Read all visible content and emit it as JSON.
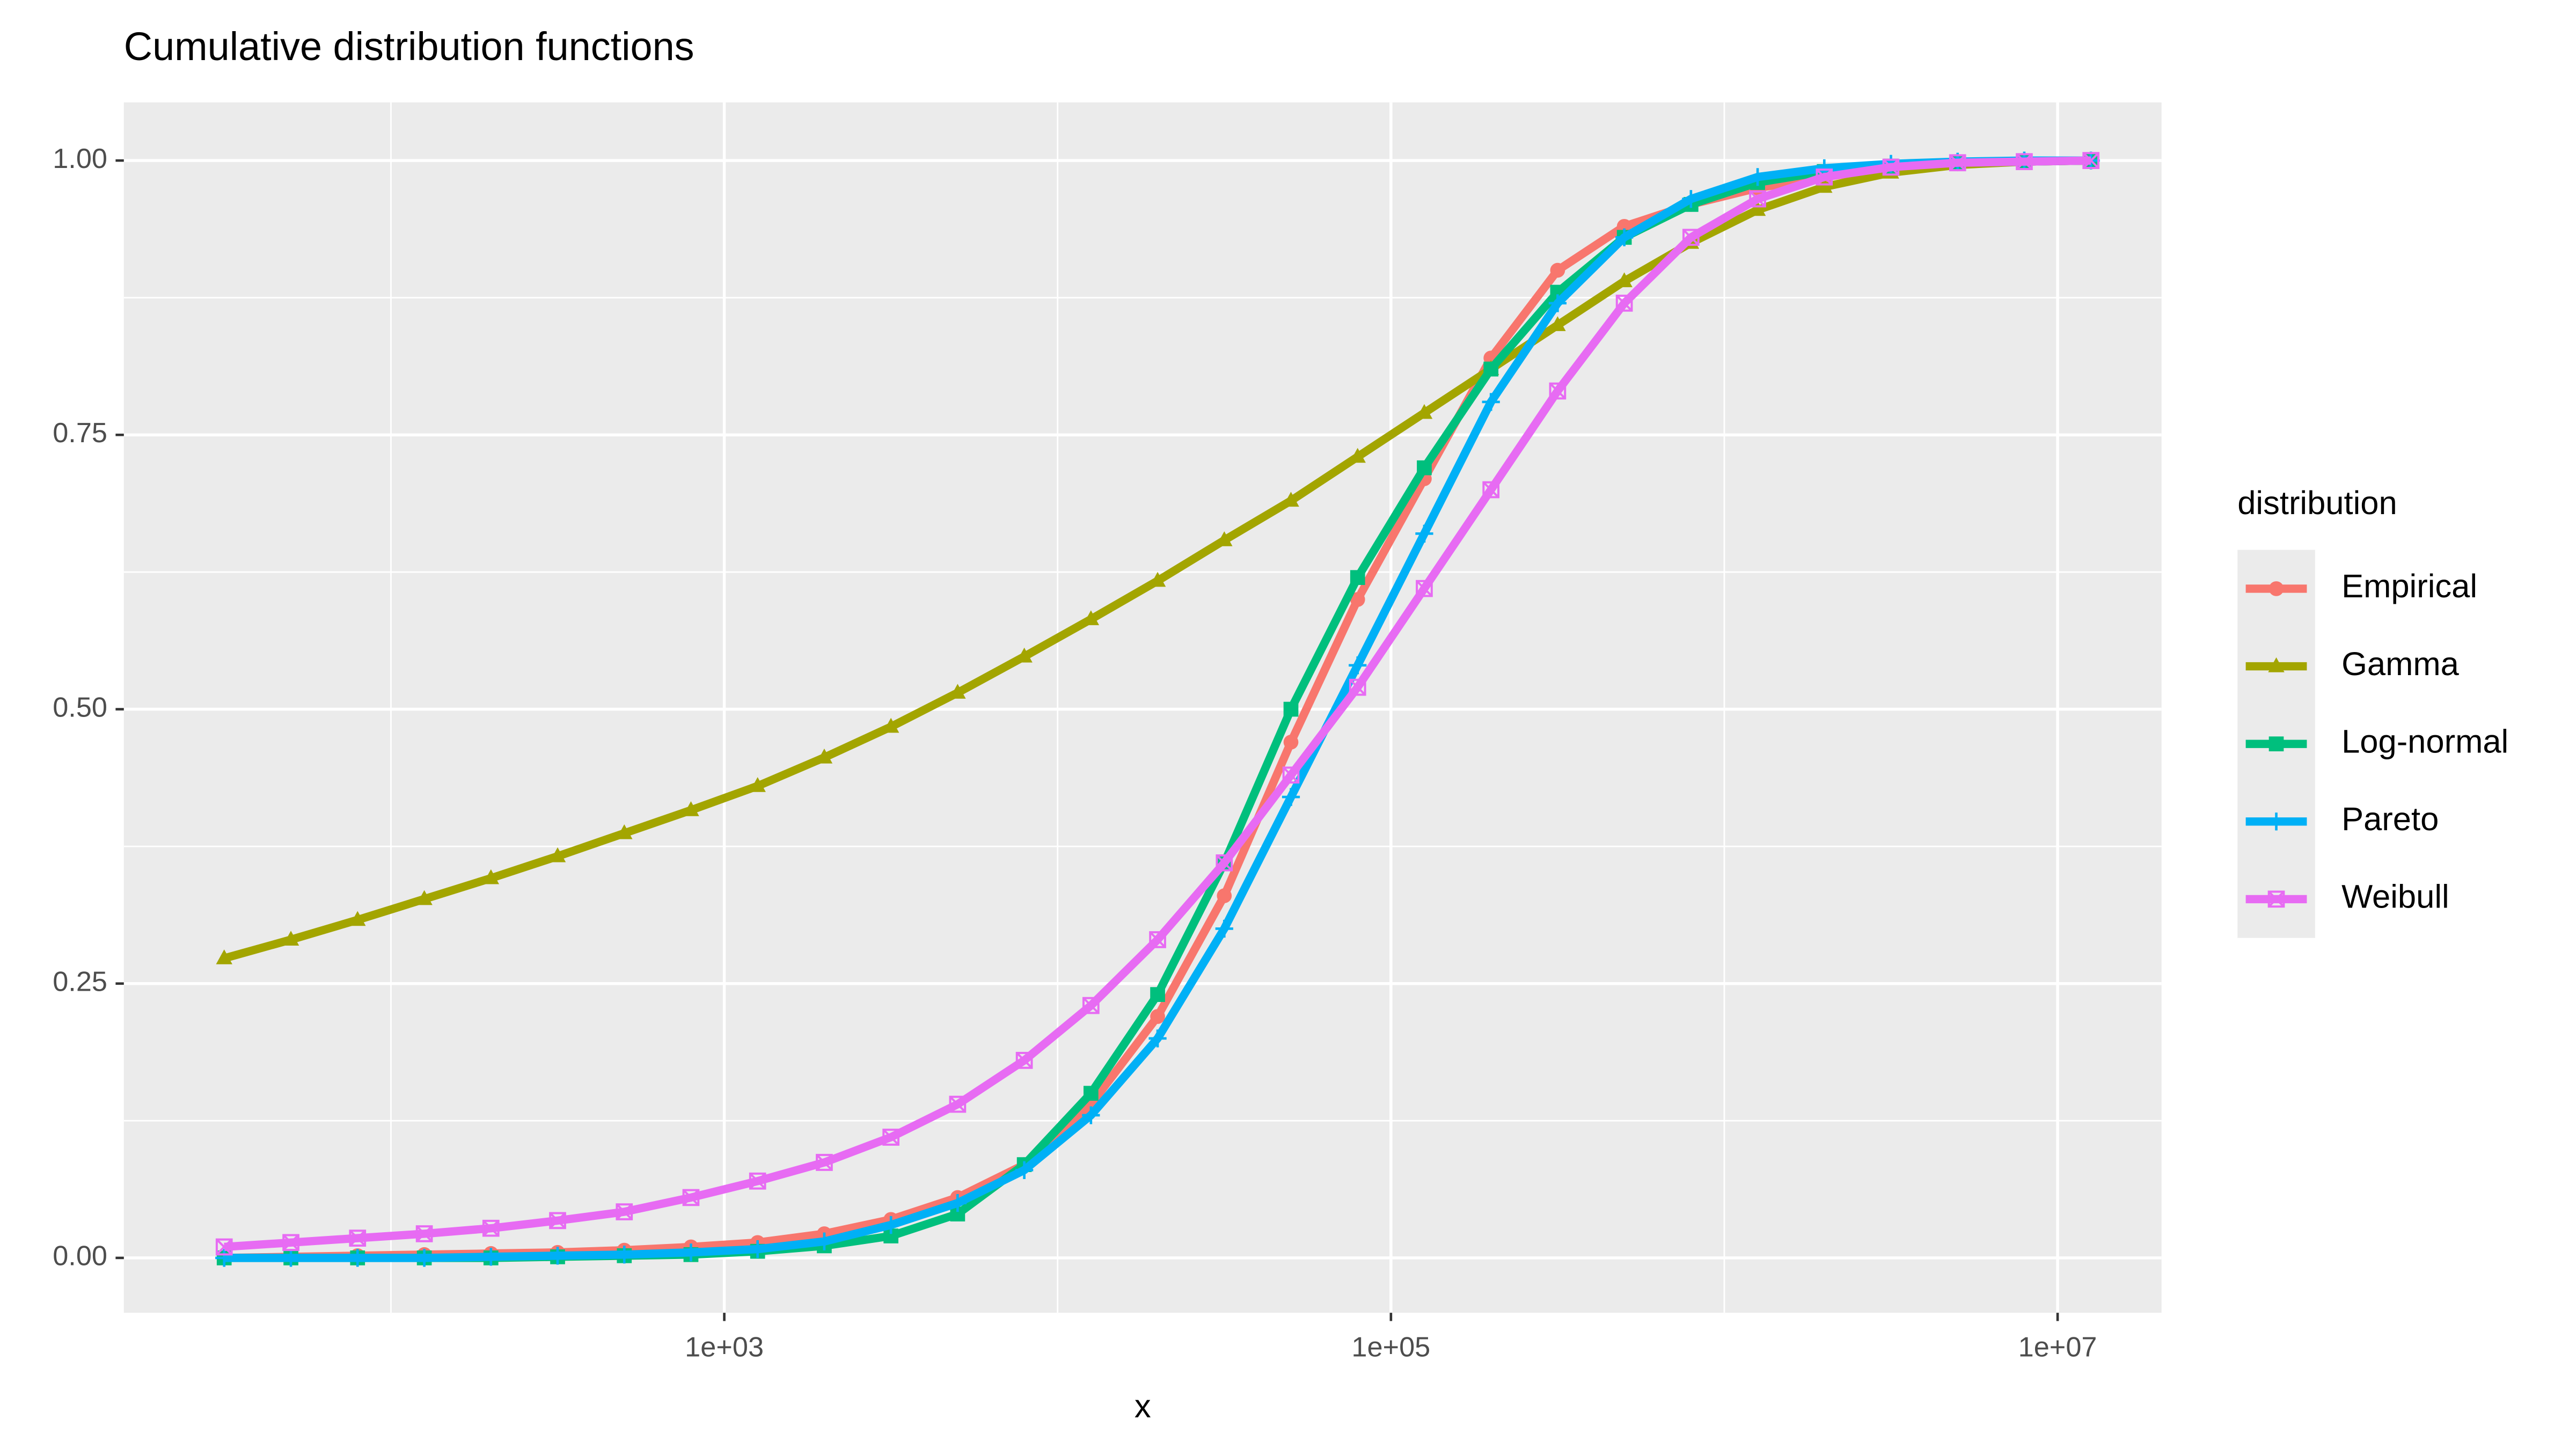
{
  "chart_data": {
    "type": "line",
    "title": "Cumulative distribution functions",
    "xlabel": "x",
    "legend_title": "distribution",
    "legend_position": "right",
    "xlog": true,
    "grid": true,
    "x": [
      31.6,
      50.1,
      79.4,
      125.9,
      199.5,
      316.2,
      501.2,
      794.3,
      1258.9,
      1995.3,
      3162.3,
      5011.9,
      7943.3,
      12589,
      19953,
      31623,
      50119,
      79433,
      125893,
      199526,
      316228,
      501187,
      794328,
      1258925,
      1995262,
      3162278,
      5011872,
      7943282,
      12589254
    ],
    "xlim": [
      15.8,
      20500000
    ],
    "xticks": [
      {
        "value": 1000,
        "label": "1e+03"
      },
      {
        "value": 100000,
        "label": "1e+05"
      },
      {
        "value": 10000000,
        "label": "1e+07"
      }
    ],
    "xminorticks": [
      100,
      10000,
      1000000
    ],
    "ylim": [
      -0.05,
      1.053
    ],
    "yticks": [
      {
        "value": 0,
        "label": "0.00"
      },
      {
        "value": 0.25,
        "label": "0.25"
      },
      {
        "value": 0.5,
        "label": "0.50"
      },
      {
        "value": 0.75,
        "label": "0.75"
      },
      {
        "value": 1,
        "label": "1.00"
      }
    ],
    "yminorticks": [
      0.125,
      0.375,
      0.625,
      0.875
    ],
    "series": [
      {
        "name": "Empirical",
        "color": "#F8766D",
        "marker": "circle",
        "values": [
          0,
          0.001,
          0.002,
          0.003,
          0.004,
          0.005,
          0.007,
          0.01,
          0.014,
          0.022,
          0.035,
          0.055,
          0.085,
          0.14,
          0.22,
          0.33,
          0.47,
          0.6,
          0.71,
          0.82,
          0.9,
          0.94,
          0.96,
          0.975,
          0.985,
          0.993,
          0.997,
          0.999,
          1
        ]
      },
      {
        "name": "Gamma",
        "color": "#A3A500",
        "marker": "triangle",
        "values": [
          0.273,
          0.29,
          0.308,
          0.327,
          0.346,
          0.366,
          0.387,
          0.408,
          0.43,
          0.456,
          0.484,
          0.515,
          0.548,
          0.582,
          0.617,
          0.654,
          0.69,
          0.73,
          0.77,
          0.81,
          0.85,
          0.89,
          0.925,
          0.955,
          0.976,
          0.989,
          0.996,
          0.999,
          1
        ]
      },
      {
        "name": "Log-normal",
        "color": "#00BF7D",
        "marker": "square",
        "values": [
          0,
          0,
          0,
          0,
          0,
          0.001,
          0.002,
          0.003,
          0.006,
          0.011,
          0.02,
          0.04,
          0.085,
          0.15,
          0.24,
          0.36,
          0.5,
          0.62,
          0.72,
          0.81,
          0.88,
          0.93,
          0.96,
          0.98,
          0.99,
          0.995,
          0.998,
          0.999,
          1
        ]
      },
      {
        "name": "Pareto",
        "color": "#00B0F6",
        "marker": "plus",
        "values": [
          0,
          0,
          0,
          0,
          0.001,
          0.002,
          0.003,
          0.005,
          0.008,
          0.015,
          0.03,
          0.05,
          0.08,
          0.13,
          0.2,
          0.3,
          0.42,
          0.54,
          0.66,
          0.78,
          0.87,
          0.93,
          0.965,
          0.985,
          0.993,
          0.997,
          0.999,
          1,
          1
        ]
      },
      {
        "name": "Weibull",
        "color": "#E76BF3",
        "marker": "square-cross",
        "values": [
          0.01,
          0.014,
          0.018,
          0.022,
          0.027,
          0.034,
          0.042,
          0.055,
          0.07,
          0.087,
          0.11,
          0.14,
          0.18,
          0.23,
          0.29,
          0.36,
          0.44,
          0.52,
          0.61,
          0.7,
          0.79,
          0.87,
          0.93,
          0.965,
          0.985,
          0.994,
          0.998,
          0.999,
          1
        ]
      }
    ]
  }
}
